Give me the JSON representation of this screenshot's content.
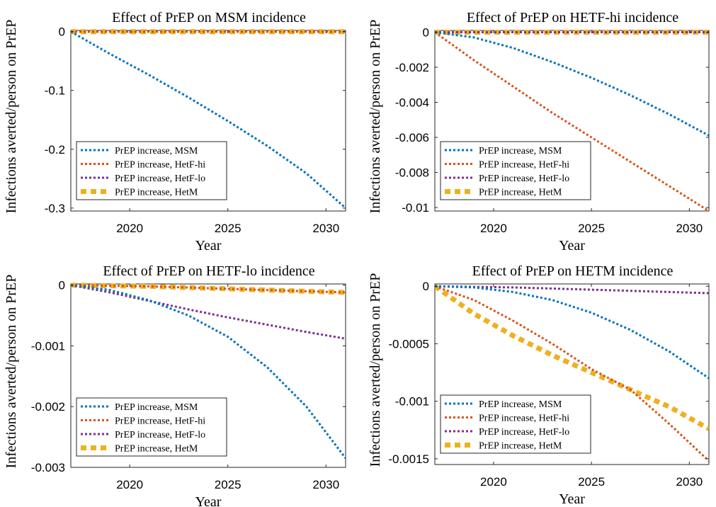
{
  "figure": {
    "ylabel": "Infections averted/person on PrEP",
    "xlabel": "Year"
  },
  "chart_data": [
    {
      "type": "line",
      "title": "Effect of PrEP on MSM incidence",
      "xlabel": "Year",
      "ylabel": "Infections averted/person on PrEP",
      "xlim": [
        2017,
        2031
      ],
      "ylim": [
        -0.305,
        0.002
      ],
      "xticks": [
        2020,
        2025,
        2030
      ],
      "xtick_labels": [
        "2020",
        "2025",
        "2030"
      ],
      "yticks": [
        0,
        -0.1,
        -0.2,
        -0.3
      ],
      "ytick_labels": [
        "0",
        "-0.1",
        "-0.2",
        "-0.3"
      ],
      "legend": "bottom-left",
      "series": [
        {
          "name": "PrEP increase, MSM",
          "color": "#0072BD",
          "x": [
            2017,
            2019,
            2021,
            2023,
            2025,
            2027,
            2029,
            2031
          ],
          "y": [
            0,
            -0.038,
            -0.074,
            -0.112,
            -0.152,
            -0.194,
            -0.241,
            -0.3
          ]
        },
        {
          "name": "PrEP increase, HetF-hi",
          "color": "#D95319",
          "x": [
            2017,
            2031
          ],
          "y": [
            0,
            0
          ]
        },
        {
          "name": "PrEP increase, HetF-lo",
          "color": "#7E2F8E",
          "x": [
            2017,
            2031
          ],
          "y": [
            0,
            0
          ]
        },
        {
          "name": "PrEP increase, HetM",
          "color": "#EDB120",
          "x": [
            2017,
            2031
          ],
          "y": [
            0,
            0
          ]
        }
      ]
    },
    {
      "type": "line",
      "title": "Effect of PrEP on HETF-hi incidence",
      "xlabel": "Year",
      "ylabel": "Infections averted/person on PrEP",
      "xlim": [
        2017,
        2031
      ],
      "ylim": [
        -0.0102,
        0.0001
      ],
      "xticks": [
        2020,
        2025,
        2030
      ],
      "xtick_labels": [
        "2020",
        "2025",
        "2030"
      ],
      "yticks": [
        0,
        -0.002,
        -0.004,
        -0.006,
        -0.008,
        -0.01
      ],
      "ytick_labels": [
        "0",
        "-0.002",
        "-0.004",
        "-0.006",
        "-0.008",
        "-0.01"
      ],
      "legend": "bottom-left",
      "series": [
        {
          "name": "PrEP increase, MSM",
          "color": "#0072BD",
          "x": [
            2017,
            2019,
            2021,
            2023,
            2025,
            2027,
            2029,
            2031
          ],
          "y": [
            0,
            -0.0003,
            -0.0009,
            -0.0017,
            -0.0026,
            -0.0036,
            -0.0047,
            -0.0059
          ]
        },
        {
          "name": "PrEP increase, HetF-hi",
          "color": "#D95319",
          "x": [
            2017,
            2019,
            2021,
            2023,
            2025,
            2027,
            2029,
            2031
          ],
          "y": [
            0,
            -0.0016,
            -0.0031,
            -0.0046,
            -0.006,
            -0.0074,
            -0.0088,
            -0.0102
          ]
        },
        {
          "name": "PrEP increase, HetF-lo",
          "color": "#7E2F8E",
          "x": [
            2017,
            2031
          ],
          "y": [
            0,
            0
          ]
        },
        {
          "name": "PrEP increase, HetM",
          "color": "#EDB120",
          "x": [
            2017,
            2031
          ],
          "y": [
            0,
            0
          ]
        }
      ]
    },
    {
      "type": "line",
      "title": "Effect of PrEP on HETF-lo incidence",
      "xlabel": "Year",
      "ylabel": "Infections averted/person on PrEP",
      "xlim": [
        2017,
        2031
      ],
      "ylim": [
        -0.003,
        2e-05
      ],
      "xticks": [
        2020,
        2025,
        2030
      ],
      "xtick_labels": [
        "2020",
        "2025",
        "2030"
      ],
      "yticks": [
        0,
        -0.001,
        -0.002,
        -0.003
      ],
      "ytick_labels": [
        "0",
        "-0.001",
        "-0.002",
        "-0.003"
      ],
      "legend": "bottom-left",
      "series": [
        {
          "name": "PrEP increase, MSM",
          "color": "#0072BD",
          "x": [
            2017,
            2019,
            2021,
            2023,
            2025,
            2027,
            2029,
            2031
          ],
          "y": [
            0,
            -8e-05,
            -0.00025,
            -0.0005,
            -0.00085,
            -0.00135,
            -0.002,
            -0.00285
          ]
        },
        {
          "name": "PrEP increase, HetF-hi",
          "color": "#D95319",
          "x": [
            2017,
            2019,
            2021,
            2023,
            2025,
            2027,
            2029,
            2031
          ],
          "y": [
            0,
            -1e-05,
            -2e-05,
            -4e-05,
            -6e-05,
            -8e-05,
            -0.0001,
            -0.00012
          ]
        },
        {
          "name": "PrEP increase, HetF-lo",
          "color": "#7E2F8E",
          "x": [
            2017,
            2019,
            2021,
            2023,
            2025,
            2027,
            2029,
            2031
          ],
          "y": [
            0,
            -0.00012,
            -0.00026,
            -0.0004,
            -0.00053,
            -0.00065,
            -0.00077,
            -0.00088
          ]
        },
        {
          "name": "PrEP increase, HetM",
          "color": "#EDB120",
          "x": [
            2017,
            2019,
            2021,
            2023,
            2025,
            2027,
            2029,
            2031
          ],
          "y": [
            0,
            -1e-05,
            -2e-05,
            -4e-05,
            -6e-05,
            -8e-05,
            -0.0001,
            -0.00012
          ]
        }
      ]
    },
    {
      "type": "line",
      "title": "Effect of PrEP on HETM incidence",
      "xlabel": "Year",
      "ylabel": "Infections averted/person on PrEP",
      "xlim": [
        2017,
        2031
      ],
      "ylim": [
        -0.00155,
        2e-05
      ],
      "xticks": [
        2020,
        2025,
        2030
      ],
      "xtick_labels": [
        "2020",
        "2025",
        "2030"
      ],
      "yticks": [
        0,
        -0.0005,
        -0.001,
        -0.0015
      ],
      "ytick_labels": [
        "0",
        "-0.0005",
        "-0.001",
        "-0.0015"
      ],
      "legend": "bottom-left",
      "series": [
        {
          "name": "PrEP increase, MSM",
          "color": "#0072BD",
          "x": [
            2017,
            2019,
            2021,
            2023,
            2025,
            2027,
            2029,
            2031
          ],
          "y": [
            0,
            -1e-05,
            -5e-05,
            -0.00012,
            -0.00023,
            -0.00038,
            -0.00057,
            -0.0008
          ]
        },
        {
          "name": "PrEP increase, HetF-hi",
          "color": "#D95319",
          "x": [
            2017,
            2019,
            2021,
            2023,
            2025,
            2027,
            2029,
            2031
          ],
          "y": [
            0,
            -0.00012,
            -0.0003,
            -0.0005,
            -0.00072,
            -0.0009,
            -0.0012,
            -0.00152
          ]
        },
        {
          "name": "PrEP increase, HetF-lo",
          "color": "#7E2F8E",
          "x": [
            2017,
            2019,
            2021,
            2023,
            2025,
            2027,
            2029,
            2031
          ],
          "y": [
            0,
            -5e-06,
            -1e-05,
            -2e-05,
            -3e-05,
            -4e-05,
            -5e-05,
            -6e-05
          ]
        },
        {
          "name": "PrEP increase, HetM",
          "color": "#EDB120",
          "x": [
            2017,
            2019,
            2021,
            2023,
            2025,
            2027,
            2029,
            2031
          ],
          "y": [
            0,
            -0.00024,
            -0.00043,
            -0.0006,
            -0.00075,
            -0.0009,
            -0.00105,
            -0.00124
          ]
        }
      ]
    }
  ]
}
